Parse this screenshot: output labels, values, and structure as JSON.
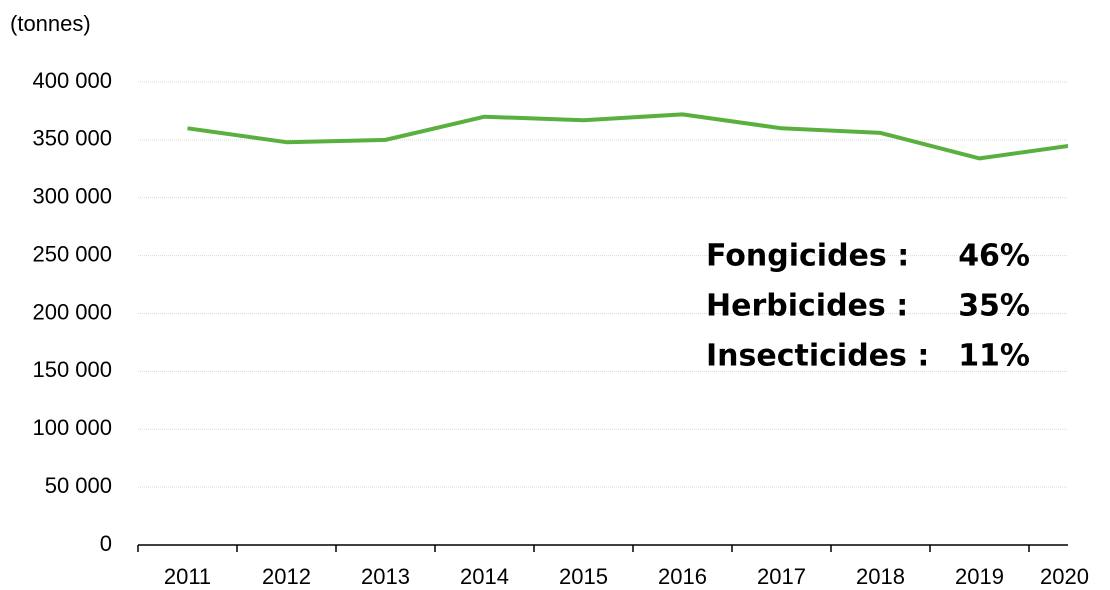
{
  "chart_data": {
    "type": "line",
    "y_axis_label": "(tonnes)",
    "categories": [
      "2011",
      "2012",
      "2013",
      "2014",
      "2015",
      "2016",
      "2017",
      "2018",
      "2019",
      "2020"
    ],
    "series": [
      {
        "name": null,
        "color": "#5ab03e",
        "values": [
          360000,
          348000,
          350000,
          370000,
          367000,
          372000,
          360000,
          356000,
          334000,
          346000
        ]
      }
    ],
    "ylim": [
      0,
      400000
    ],
    "yticks": [
      0,
      {
        "value": 50000,
        "label": "50 000"
      },
      {
        "value": 100000,
        "label": "100 000"
      },
      {
        "value": 150000,
        "label": "150 000"
      },
      {
        "value": 200000,
        "label": "200 000"
      },
      {
        "value": 250000,
        "label": "250 000"
      },
      {
        "value": 300000,
        "label": "300 000"
      },
      {
        "value": 350000,
        "label": "350 000"
      },
      {
        "value": 400000,
        "label": "400 000"
      }
    ],
    "grid": true,
    "annotations": [
      {
        "label": "Fongicides :",
        "text": "46%"
      },
      {
        "label": "Herbicides :",
        "text": "35%"
      },
      {
        "label": "Insecticides :",
        "text": "11%"
      }
    ]
  }
}
